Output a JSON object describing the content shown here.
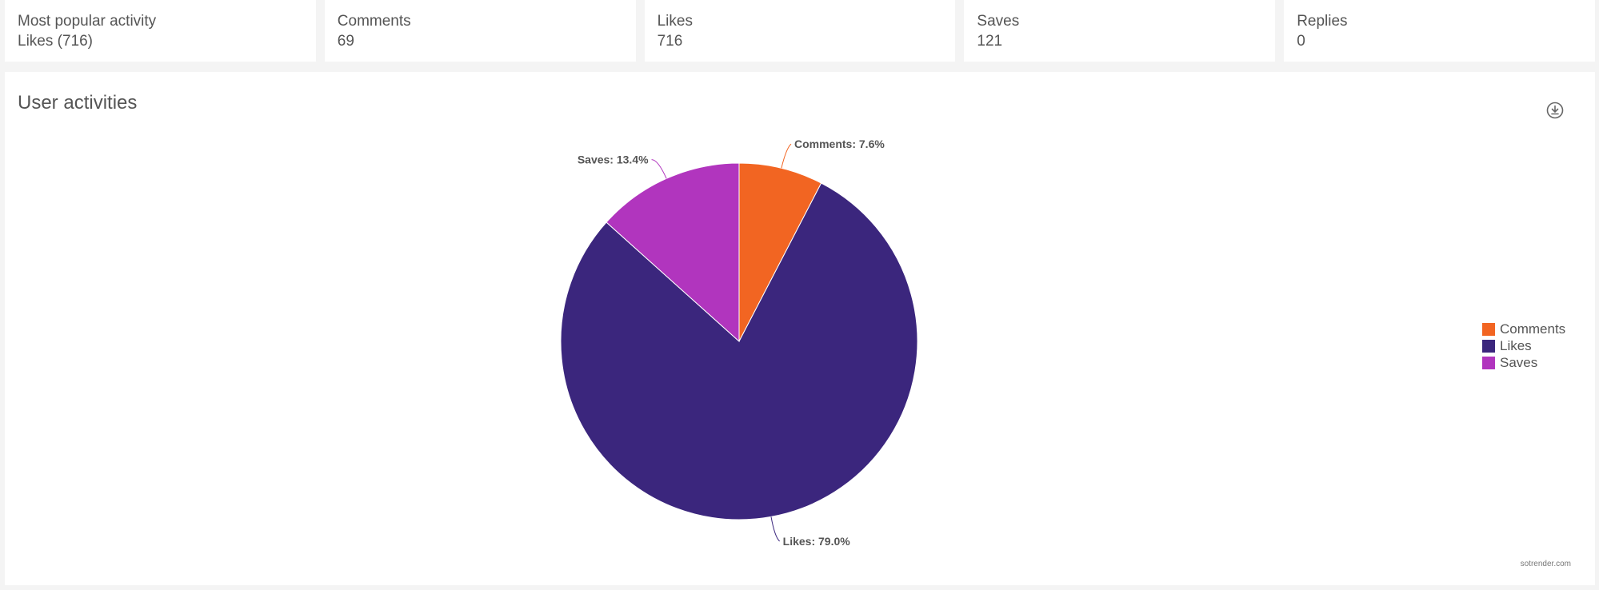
{
  "stats": [
    {
      "label": "Most popular activity",
      "value": "Likes (716)"
    },
    {
      "label": "Comments",
      "value": "69"
    },
    {
      "label": "Likes",
      "value": "716"
    },
    {
      "label": "Saves",
      "value": "121"
    },
    {
      "label": "Replies",
      "value": "0"
    }
  ],
  "chart": {
    "title": "User activities",
    "download_icon": "download-icon",
    "credit": "sotrender.com"
  },
  "chart_data": {
    "type": "pie",
    "title": "User activities",
    "legend_position": "right",
    "categories": [
      "Comments",
      "Likes",
      "Saves"
    ],
    "values": [
      69,
      716,
      121
    ],
    "percent_labels": [
      "Comments: 7.6%",
      "Likes: 79.0%",
      "Saves: 13.4%"
    ],
    "colors": [
      "#f26522",
      "#3b267d",
      "#b135be"
    ]
  }
}
